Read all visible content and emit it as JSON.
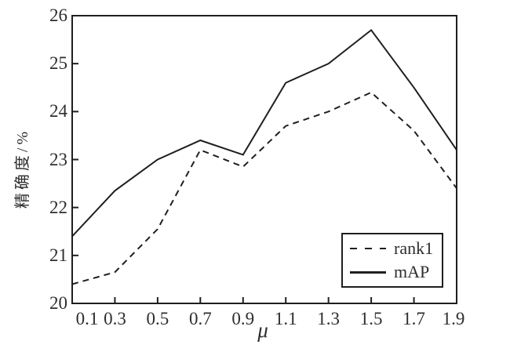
{
  "figure": {
    "background": "#ffffff",
    "axis_color": "#1f1f1f",
    "text_color": "#2e2e2e"
  },
  "chart_data": {
    "type": "line",
    "title": "",
    "xlabel": "μ",
    "ylabel": "精确度/%",
    "x": [
      0.1,
      0.3,
      0.5,
      0.7,
      0.9,
      1.1,
      1.3,
      1.5,
      1.7,
      1.9
    ],
    "series": [
      {
        "name": "rank1",
        "style": "dashed",
        "color": "#1f1f1f",
        "values": [
          20.4,
          20.65,
          21.55,
          23.2,
          22.85,
          23.7,
          24.0,
          24.4,
          23.6,
          22.4
        ]
      },
      {
        "name": "mAP",
        "style": "solid",
        "color": "#1f1f1f",
        "values": [
          21.4,
          22.35,
          23.0,
          23.4,
          23.1,
          24.6,
          25.0,
          25.7,
          24.5,
          23.2
        ]
      }
    ],
    "xlim": [
      0.1,
      1.9
    ],
    "ylim": [
      20,
      26
    ],
    "xticks": [
      "0.1",
      "0.3",
      "0.5",
      "0.7",
      "0.9",
      "1.1",
      "1.3",
      "1.5",
      "1.7",
      "1.9"
    ],
    "yticks": [
      "20",
      "21",
      "22",
      "23",
      "24",
      "25",
      "26"
    ],
    "grid": false,
    "legend_position": "lower right",
    "tick_direction": "in"
  }
}
